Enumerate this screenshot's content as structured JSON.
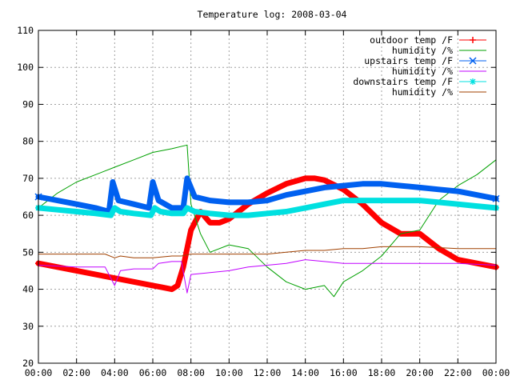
{
  "chart_data": {
    "type": "line",
    "title": "Temperature log: 2008-03-04",
    "xlabel": "",
    "ylabel": "",
    "xlim": [
      0,
      24
    ],
    "ylim": [
      20,
      110
    ],
    "x_ticks": [
      "00:00",
      "02:00",
      "04:00",
      "06:00",
      "08:00",
      "10:00",
      "12:00",
      "14:00",
      "16:00",
      "18:00",
      "20:00",
      "22:00",
      "00:00"
    ],
    "y_ticks": [
      20,
      30,
      40,
      50,
      60,
      70,
      80,
      90,
      100,
      110
    ],
    "grid": true,
    "legend_position": "top-right",
    "series": [
      {
        "name": "outdoor temp /F",
        "color": "#ff0000",
        "marker": "plus",
        "x": [
          0,
          1,
          2,
          3,
          4,
          5,
          6,
          6.5,
          7,
          7.3,
          7.6,
          8,
          8.5,
          9,
          9.5,
          10,
          11,
          12,
          13,
          14,
          14.5,
          15,
          16,
          17,
          18,
          19,
          20,
          21,
          22,
          23,
          24
        ],
        "y": [
          47,
          46,
          45,
          44,
          43,
          42,
          41,
          40.5,
          40,
          41,
          46,
          56,
          61,
          58,
          58,
          59,
          63,
          66,
          68.5,
          70,
          70,
          69.5,
          67,
          63,
          58,
          55,
          55,
          51,
          48,
          47,
          46
        ]
      },
      {
        "name": "humidity /%",
        "color": "#00a000",
        "marker": "none",
        "x": [
          0,
          1,
          2,
          3,
          4,
          5,
          6,
          7,
          7.8,
          8,
          8.5,
          9,
          10,
          11,
          12,
          13,
          14,
          15,
          15.5,
          16,
          17,
          18,
          19,
          20,
          21,
          22,
          23,
          24
        ],
        "y": [
          62,
          66,
          69,
          71,
          73,
          75,
          77,
          78,
          79,
          63,
          55,
          50,
          52,
          51,
          46,
          42,
          40,
          41,
          38,
          42,
          45,
          49,
          55,
          56,
          64,
          68,
          71,
          75
        ]
      },
      {
        "name": "upstairs temp /F",
        "color": "#0060f0",
        "marker": "cross",
        "x": [
          0,
          1,
          2,
          3,
          3.7,
          3.9,
          4.2,
          5,
          5.8,
          6,
          6.3,
          7,
          7.6,
          7.8,
          8.2,
          9,
          10,
          11,
          12,
          13,
          14,
          15,
          16,
          17,
          18,
          19,
          20,
          21,
          22,
          23,
          24
        ],
        "y": [
          65,
          64,
          63,
          62,
          61,
          69,
          64,
          63,
          62,
          69,
          64,
          62,
          62,
          70,
          65,
          64,
          63.5,
          63.5,
          64,
          65.5,
          66.5,
          67.5,
          68,
          68.5,
          68.5,
          68,
          67.5,
          67,
          66.5,
          65.5,
          64.5
        ]
      },
      {
        "name": "humidity /%",
        "color": "#c000ff",
        "marker": "none",
        "x": [
          0,
          2,
          3.5,
          4,
          4.3,
          5,
          6,
          6.3,
          7,
          7.5,
          7.8,
          8,
          9,
          10,
          11,
          12,
          13,
          14,
          15,
          16,
          18,
          20,
          22,
          24
        ],
        "y": [
          46.5,
          46,
          46,
          41,
          45,
          45.5,
          45.5,
          47,
          47.5,
          47.5,
          39,
          44,
          44.5,
          45,
          46,
          46.5,
          47,
          48,
          47.5,
          47,
          47,
          47,
          47,
          46.5
        ]
      },
      {
        "name": "downstairs temp /F",
        "color": "#00e0e0",
        "marker": "star",
        "x": [
          0,
          1,
          2,
          3,
          3.8,
          4,
          4.3,
          5,
          5.9,
          6.1,
          6.4,
          7,
          7.6,
          7.8,
          8.2,
          9,
          10,
          11,
          12,
          13,
          14,
          15,
          16,
          17,
          18,
          19,
          20,
          21,
          22,
          23,
          24
        ],
        "y": [
          62,
          61.5,
          61,
          60.5,
          60,
          62,
          61,
          60.5,
          60,
          62,
          61,
          60.5,
          60.5,
          62,
          61,
          60.5,
          60,
          60,
          60.5,
          61,
          62,
          63,
          64,
          64,
          64,
          64,
          64,
          63.5,
          63,
          62.5,
          62
        ]
      },
      {
        "name": "humidity /%",
        "color": "#a04000",
        "marker": "none",
        "x": [
          0,
          2,
          3,
          3.5,
          4,
          4.3,
          5,
          6,
          7,
          7.5,
          8,
          9,
          10,
          11,
          12,
          13,
          14,
          15,
          16,
          17,
          18,
          20,
          22,
          24
        ],
        "y": [
          49.5,
          49.5,
          49.5,
          49.5,
          48.5,
          49,
          48.5,
          48.5,
          49,
          49,
          49.5,
          49.5,
          49.5,
          49.5,
          49.5,
          50,
          50.5,
          50.5,
          51,
          51,
          51.5,
          51.5,
          51,
          51
        ]
      }
    ]
  }
}
